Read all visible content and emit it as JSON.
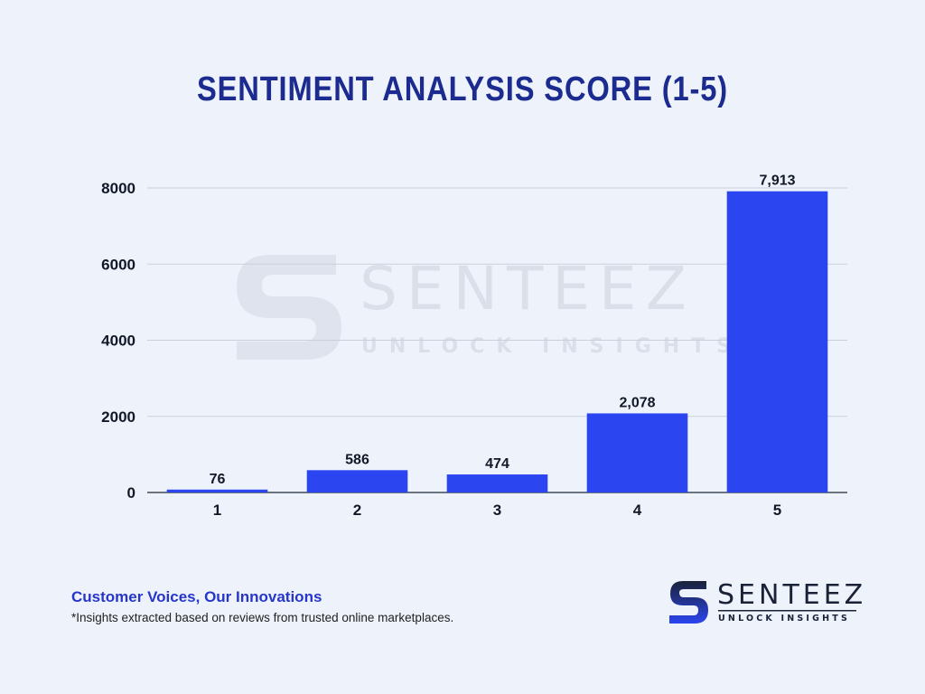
{
  "chart_data": {
    "type": "bar",
    "title": "SENTIMENT ANALYSIS SCORE (1-5)",
    "categories": [
      "1",
      "2",
      "3",
      "4",
      "5"
    ],
    "values": [
      76,
      586,
      474,
      2078,
      7913
    ],
    "value_labels": [
      "76",
      "586",
      "474",
      "2,078",
      "7,913"
    ],
    "ylim": [
      0,
      8000
    ],
    "yticks": [
      0,
      2000,
      4000,
      6000,
      8000
    ],
    "grid": true,
    "bar_color": "#2b45f0",
    "title_color": "#1c2b8f"
  },
  "watermark": {
    "name": "SENTEEZ",
    "tagline": "UNLOCK INSIGHTS"
  },
  "footer": {
    "tagline": "Customer Voices, Our Innovations",
    "footnote": "*Insights extracted based on reviews from trusted online marketplaces."
  },
  "brand": {
    "name": "SENTEEZ",
    "tagline": "UNLOCK INSIGHTS",
    "accent": "#2b45f0",
    "logo_icon": "s-logo-icon"
  }
}
